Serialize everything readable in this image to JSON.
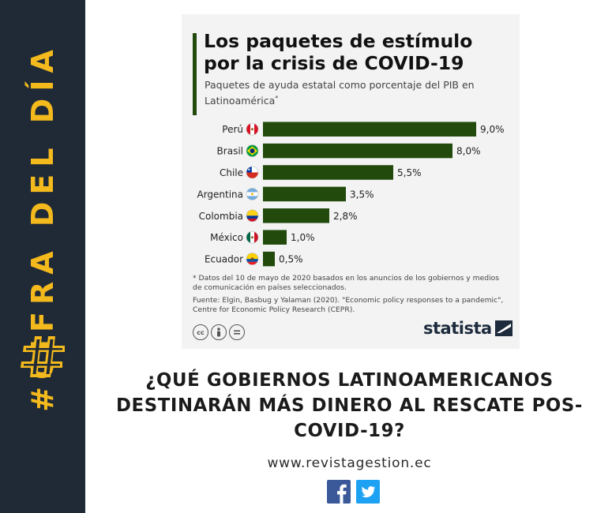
{
  "sidebar": {
    "label": "#CIFRA DEL DÍA",
    "accent_color": "#f3b91d",
    "background_color": "#1f2a36",
    "icon": "hash-icon"
  },
  "chart_data": {
    "type": "bar",
    "orientation": "horizontal",
    "title": "Los paquetes de estímulo por la crisis de COVID-19",
    "subtitle": "Paquetes de ayuda estatal como porcentaje del PIB en Latinoamérica*",
    "categories": [
      "Perú",
      "Brasil",
      "Chile",
      "Argentina",
      "Colombia",
      "México",
      "Ecuador"
    ],
    "values": [
      9.0,
      8.0,
      5.5,
      3.5,
      2.8,
      1.0,
      0.5
    ],
    "value_labels": [
      "9,0%",
      "8,0%",
      "5,5%",
      "3,5%",
      "2,8%",
      "1,0%",
      "0,5%"
    ],
    "flags": [
      "peru-flag-icon",
      "brazil-flag-icon",
      "chile-flag-icon",
      "argentina-flag-icon",
      "colombia-flag-icon",
      "mexico-flag-icon",
      "ecuador-flag-icon"
    ],
    "xlim": [
      0,
      9
    ],
    "bar_color": "#214a0c",
    "grid": false,
    "legend": "none"
  },
  "footnote": "* Datos del 10 de mayo de 2020 basados en los anuncios de los gobiernos y medios de comunicación en países seleccionados.",
  "source": "Fuente: Elgin, Basbug y Yalaman (2020). \"Economic policy responses to a pandemic\", Centre for Economic Policy Research (CEPR).",
  "license_icons": [
    "cc-icon",
    "by-icon",
    "nd-icon"
  ],
  "brand": {
    "name": "statista",
    "icon": "statista-logo-icon"
  },
  "question": "¿QUÉ GOBIERNOS LATINOAMERICANOS DESTINARÁN MÁS DINERO AL RESCATE POS-COVID-19?",
  "website": "www.revistagestion.ec",
  "social": {
    "icons": [
      "facebook-icon",
      "twitter-icon"
    ],
    "facebook_color": "#3b5998",
    "twitter_color": "#1da1f2"
  }
}
